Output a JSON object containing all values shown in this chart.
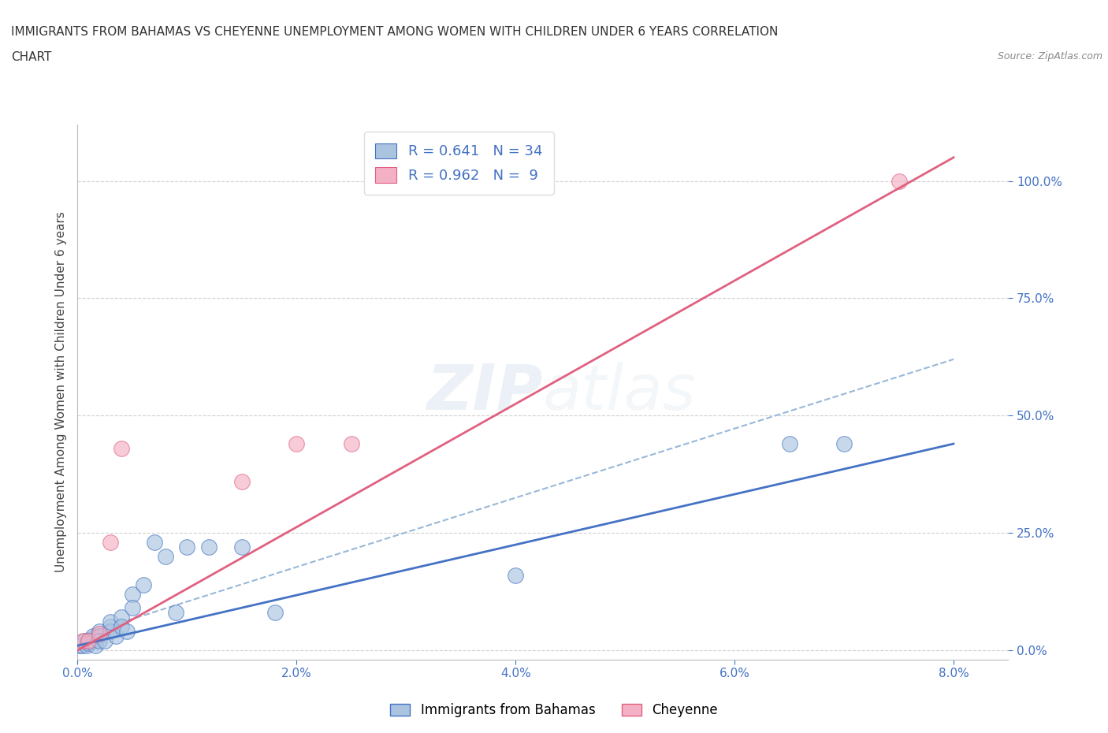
{
  "title_line1": "IMMIGRANTS FROM BAHAMAS VS CHEYENNE UNEMPLOYMENT AMONG WOMEN WITH CHILDREN UNDER 6 YEARS CORRELATION",
  "title_line2": "CHART",
  "source_text": "Source: ZipAtlas.com",
  "ylabel": "Unemployment Among Women with Children Under 6 years",
  "xlim": [
    0.0,
    0.085
  ],
  "ylim": [
    -0.02,
    1.12
  ],
  "xticks": [
    0.0,
    0.02,
    0.04,
    0.06,
    0.08
  ],
  "xtick_labels": [
    "0.0%",
    "2.0%",
    "4.0%",
    "6.0%",
    "8.0%"
  ],
  "yticks": [
    0.0,
    0.25,
    0.5,
    0.75,
    1.0
  ],
  "ytick_labels": [
    "0.0%",
    "25.0%",
    "50.0%",
    "75.0%",
    "100.0%"
  ],
  "blue_R": 0.641,
  "blue_N": 34,
  "pink_R": 0.962,
  "pink_N": 9,
  "legend_label_blue": "Immigrants from Bahamas",
  "legend_label_pink": "Cheyenne",
  "blue_color": "#aac4e0",
  "blue_line_color": "#4472c4",
  "pink_color": "#f4b0c4",
  "pink_line_color": "#e06080",
  "dash_line_color": "#99b8d8",
  "watermark_color": "#c8d8e8",
  "background_color": "#ffffff",
  "blue_scatter_x": [
    0.0002,
    0.0004,
    0.0006,
    0.0008,
    0.001,
    0.001,
    0.0012,
    0.0014,
    0.0015,
    0.0016,
    0.002,
    0.002,
    0.002,
    0.0025,
    0.003,
    0.003,
    0.003,
    0.0035,
    0.004,
    0.004,
    0.0045,
    0.005,
    0.005,
    0.006,
    0.007,
    0.008,
    0.009,
    0.01,
    0.012,
    0.015,
    0.018,
    0.04,
    0.065,
    0.07
  ],
  "blue_scatter_y": [
    0.01,
    0.01,
    0.02,
    0.01,
    0.02,
    0.015,
    0.02,
    0.03,
    0.02,
    0.01,
    0.04,
    0.03,
    0.02,
    0.02,
    0.05,
    0.04,
    0.06,
    0.03,
    0.07,
    0.05,
    0.04,
    0.12,
    0.09,
    0.14,
    0.23,
    0.2,
    0.08,
    0.22,
    0.22,
    0.22,
    0.08,
    0.16,
    0.44,
    0.44
  ],
  "pink_scatter_x": [
    0.0005,
    0.001,
    0.002,
    0.003,
    0.004,
    0.015,
    0.02,
    0.025,
    0.075
  ],
  "pink_scatter_y": [
    0.02,
    0.02,
    0.035,
    0.23,
    0.43,
    0.36,
    0.44,
    0.44,
    1.0
  ],
  "blue_line_x": [
    0.0,
    0.08
  ],
  "blue_line_y": [
    0.01,
    0.44
  ],
  "pink_line_x": [
    0.0,
    0.08
  ],
  "pink_line_y": [
    0.0,
    1.05
  ],
  "dash_line_x": [
    0.0,
    0.08
  ],
  "dash_line_y": [
    0.03,
    0.62
  ]
}
